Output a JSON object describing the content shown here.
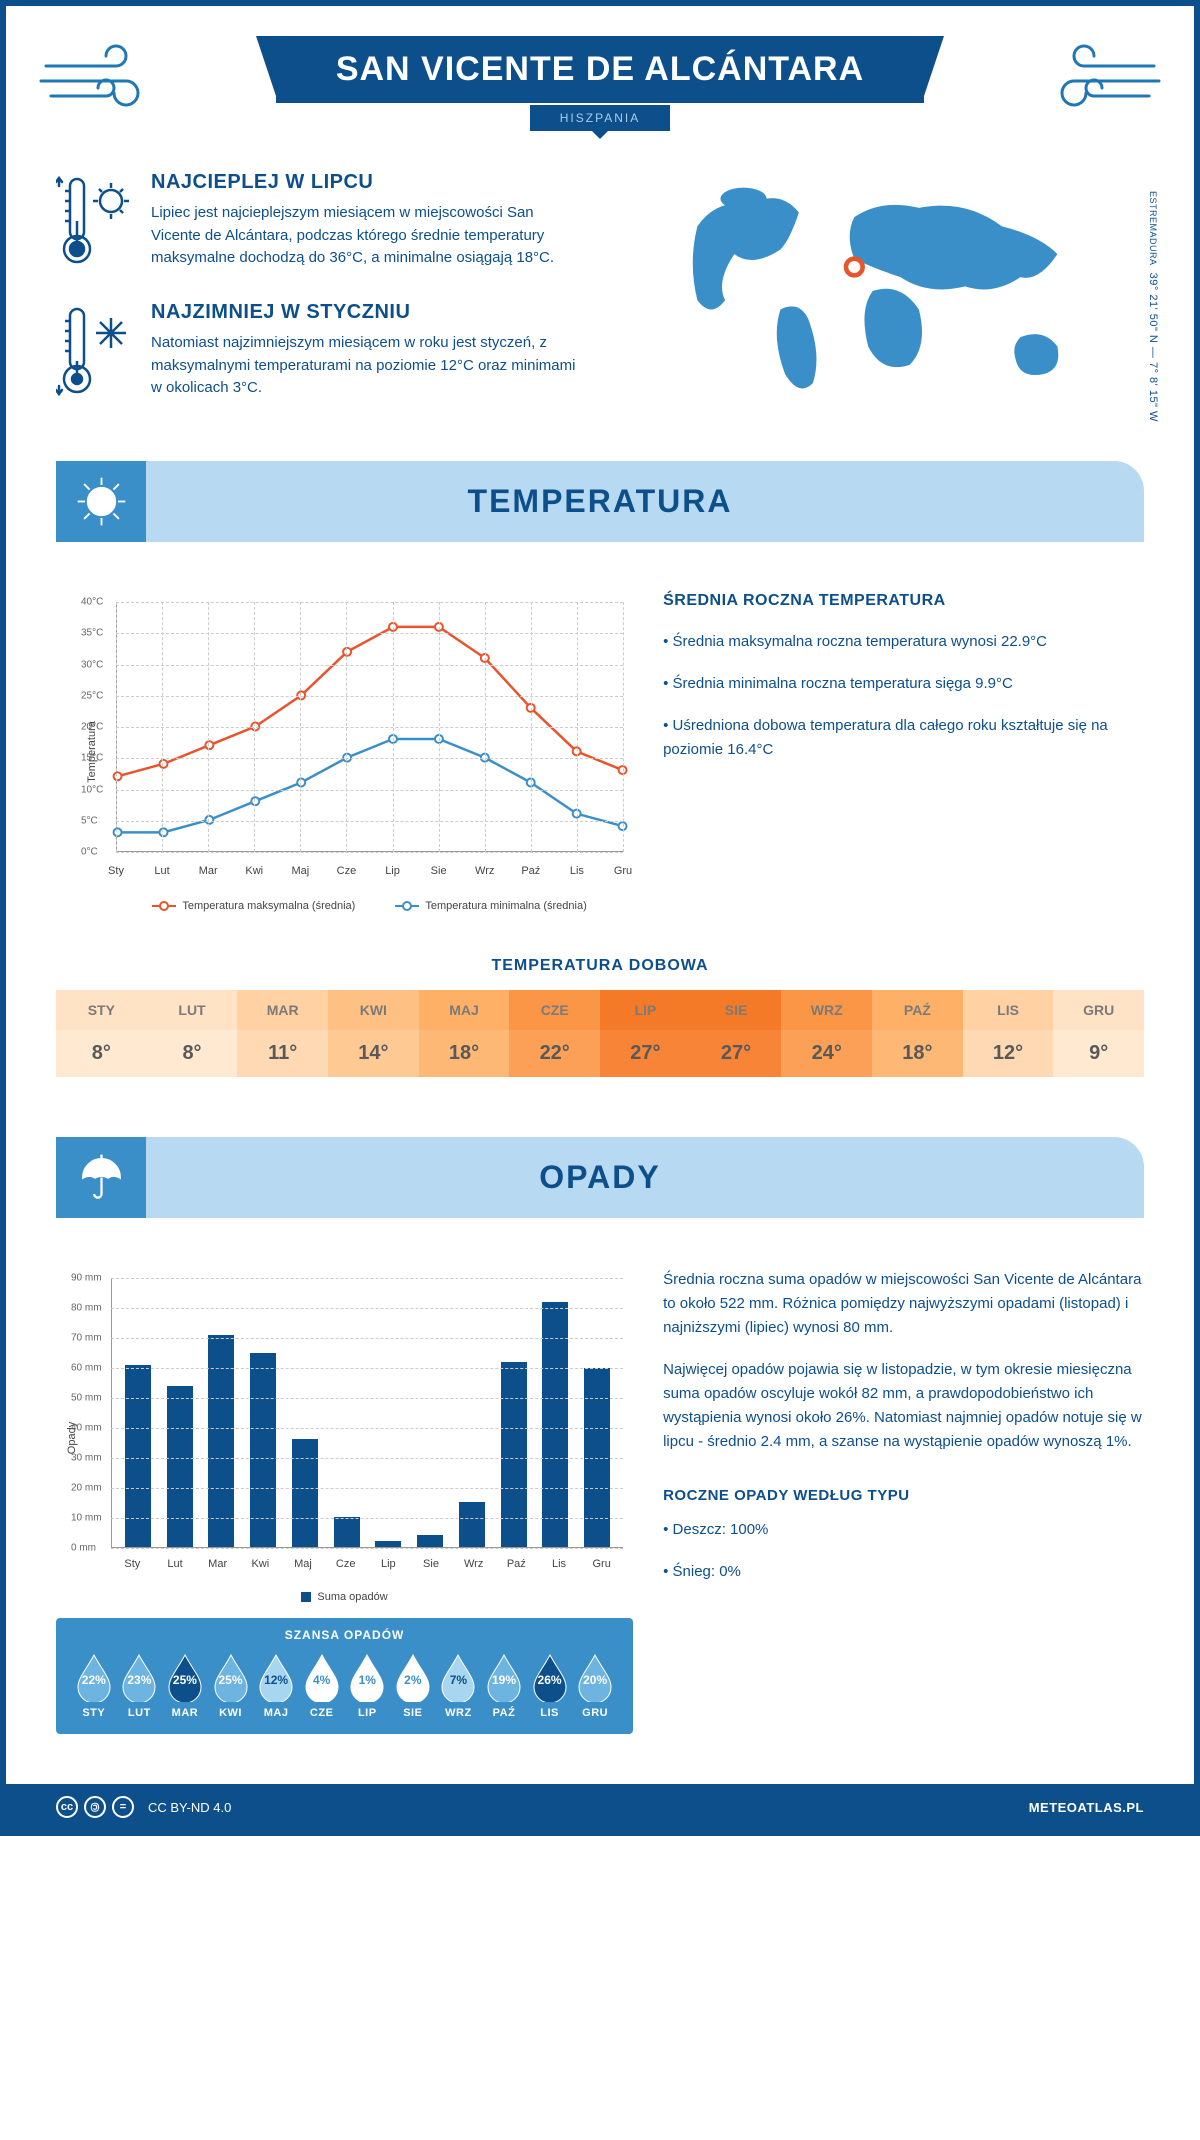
{
  "header": {
    "title": "SAN VICENTE DE ALCÁNTARA",
    "subtitle": "HISZPANIA"
  },
  "location": {
    "coords": "39° 21' 50\" N — 7° 8' 15\" W",
    "region": "ESTREMADURA",
    "marker": {
      "left_pct": 44,
      "top_pct": 40
    }
  },
  "hottest": {
    "title": "NAJCIEPLEJ W LIPCU",
    "text": "Lipiec jest najcieplejszym miesiącem w miejscowości San Vicente de Alcántara, podczas którego średnie temperatury maksymalne dochodzą do 36°C, a minimalne osiągają 18°C."
  },
  "coldest": {
    "title": "NAJZIMNIEJ W STYCZNIU",
    "text": "Natomiast najzimniejszym miesiącem w roku jest styczeń, z maksymalnymi temperaturami na poziomie 12°C oraz minimami w okolicach 3°C."
  },
  "temperature": {
    "heading": "TEMPERATURA",
    "info_heading": "ŚREDNIA ROCZNA TEMPERATURA",
    "bullets": [
      "• Średnia maksymalna roczna temperatura wynosi 22.9°C",
      "• Średnia minimalna roczna temperatura sięga 9.9°C",
      "• Uśredniona dobowa temperatura dla całego roku kształtuje się na poziomie 16.4°C"
    ],
    "chart": {
      "type": "line",
      "y_label": "Temperatura",
      "ylim": [
        0,
        40
      ],
      "ytick_step": 5,
      "y_unit": "°C",
      "months": [
        "Sty",
        "Lut",
        "Mar",
        "Kwi",
        "Maj",
        "Cze",
        "Lip",
        "Sie",
        "Wrz",
        "Paź",
        "Lis",
        "Gru"
      ],
      "series": {
        "max": {
          "label": "Temperatura maksymalna (średnia)",
          "color": "#e8542c",
          "values": [
            12,
            14,
            17,
            20,
            25,
            32,
            36,
            36,
            31,
            23,
            16,
            13
          ]
        },
        "min": {
          "label": "Temperatura minimalna (średnia)",
          "color": "#3b8fc9",
          "values": [
            3,
            3,
            5,
            8,
            11,
            15,
            18,
            18,
            15,
            11,
            6,
            4
          ]
        }
      },
      "grid_color": "#dddddd",
      "background_color": "#ffffff"
    },
    "daily": {
      "heading": "TEMPERATURA DOBOWA",
      "months": [
        "STY",
        "LUT",
        "MAR",
        "KWI",
        "MAJ",
        "CZE",
        "LIP",
        "SIE",
        "WRZ",
        "PAŹ",
        "LIS",
        "GRU"
      ],
      "values": [
        "8°",
        "8°",
        "11°",
        "14°",
        "18°",
        "22°",
        "27°",
        "27°",
        "24°",
        "18°",
        "12°",
        "9°"
      ],
      "hdr_colors": [
        "#ffe3c4",
        "#ffe3c4",
        "#ffd1a3",
        "#ffc183",
        "#fdb066",
        "#fa9646",
        "#f57a27",
        "#f57a27",
        "#fa9646",
        "#fdb066",
        "#ffd1a3",
        "#ffe3c4"
      ],
      "val_colors": [
        "#ffe9d1",
        "#ffe9d1",
        "#ffd9b3",
        "#ffc993",
        "#fdb876",
        "#fba056",
        "#f78437",
        "#f78437",
        "#fba056",
        "#fdb876",
        "#ffd9b3",
        "#ffe9d1"
      ]
    }
  },
  "precip": {
    "heading": "OPADY",
    "para1": "Średnia roczna suma opadów w miejscowości San Vicente de Alcántara to około 522 mm. Różnica pomiędzy najwyższymi opadami (listopad) i najniższymi (lipiec) wynosi 80 mm.",
    "para2": "Najwięcej opadów pojawia się w listopadzie, w tym okresie miesięczna suma opadów oscyluje wokół 82 mm, a prawdopodobieństwo ich wystąpienia wynosi około 26%. Natomiast najmniej opadów notuje się w lipcu - średnio 2.4 mm, a szanse na wystąpienie opadów wynoszą 1%.",
    "chart": {
      "type": "bar",
      "y_label": "Opady",
      "ylim": [
        0,
        90
      ],
      "ytick_step": 10,
      "y_unit": " mm",
      "months": [
        "Sty",
        "Lut",
        "Mar",
        "Kwi",
        "Maj",
        "Cze",
        "Lip",
        "Sie",
        "Wrz",
        "Paź",
        "Lis",
        "Gru"
      ],
      "values": [
        61,
        54,
        71,
        65,
        36,
        10,
        2,
        4,
        15,
        62,
        82,
        60
      ],
      "bar_color": "#0d4f8b",
      "legend": "Suma opadów"
    },
    "chance": {
      "heading": "SZANSA OPADÓW",
      "months": [
        "STY",
        "LUT",
        "MAR",
        "KWI",
        "MAJ",
        "CZE",
        "LIP",
        "SIE",
        "WRZ",
        "PAŹ",
        "LIS",
        "GRU"
      ],
      "values": [
        "22%",
        "23%",
        "25%",
        "25%",
        "12%",
        "4%",
        "1%",
        "2%",
        "7%",
        "19%",
        "26%",
        "20%"
      ],
      "fill_colors": [
        "#6db4e0",
        "#6db4e0",
        "#0d4f8b",
        "#6db4e0",
        "#a8d5ef",
        "#ffffff",
        "#ffffff",
        "#ffffff",
        "#a8d5ef",
        "#6db4e0",
        "#0d4f8b",
        "#6db4e0"
      ],
      "text_colors": [
        "#ffffff",
        "#ffffff",
        "#ffffff",
        "#ffffff",
        "#0d4f8b",
        "#3b8fc9",
        "#3b8fc9",
        "#3b8fc9",
        "#0d4f8b",
        "#ffffff",
        "#ffffff",
        "#ffffff"
      ]
    },
    "type_heading": "ROCZNE OPADY WEDŁUG TYPU",
    "type_bullets": [
      "• Deszcz: 100%",
      "• Śnieg: 0%"
    ]
  },
  "footer": {
    "license": "CC BY-ND 4.0",
    "site": "METEOATLAS.PL"
  }
}
